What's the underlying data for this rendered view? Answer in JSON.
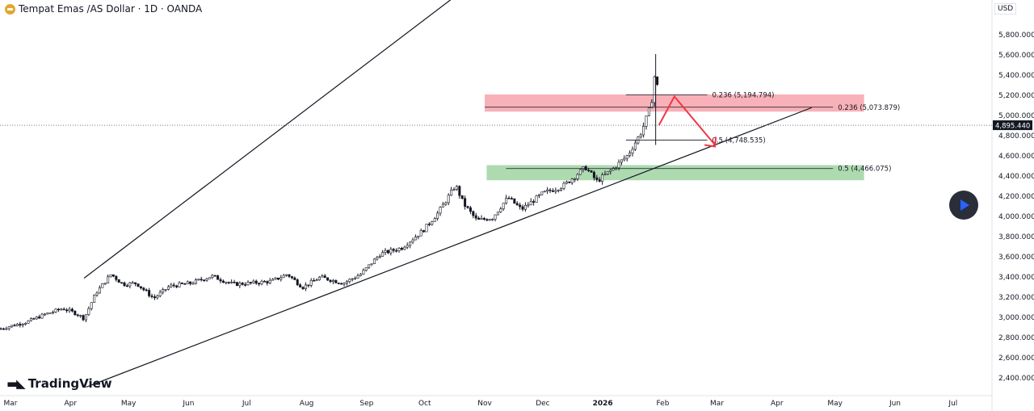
{
  "header": {
    "title": "Tempat Emas /AS Dollar · 1D · OANDA",
    "currency": "USD"
  },
  "logo": {
    "text": "TradingView"
  },
  "colors": {
    "up": "#089981",
    "down": "#f23645",
    "candle": "#131722",
    "resistance_zone": "#f7a8b0",
    "support_zone": "#a5d6a7",
    "arrow": "#f23645",
    "last_price_bg": "#131722"
  },
  "chart_data": {
    "type": "candlestick",
    "symbol": "XAU/USD",
    "ylim": [
      2300,
      5900
    ],
    "y_ticks": [
      "5,800.000",
      "5,600.000",
      "5,400.000",
      "5,200.000",
      "5,000.000",
      "4,800.000",
      "4,600.000",
      "4,400.000",
      "4,200.000",
      "4,000.000",
      "3,800.000",
      "3,600.000",
      "3,400.000",
      "3,200.000",
      "3,000.000",
      "2,800.000",
      "2,600.000",
      "2,400.000"
    ],
    "y_tick_values": [
      5800,
      5600,
      5400,
      5200,
      5000,
      4800,
      4600,
      4400,
      4200,
      4000,
      3800,
      3600,
      3400,
      3200,
      3000,
      2800,
      2600,
      2400
    ],
    "x_ticks": [
      {
        "label": "Mar",
        "date": "2025-03-01"
      },
      {
        "label": "Apr",
        "date": "2025-04-01"
      },
      {
        "label": "May",
        "date": "2025-05-01"
      },
      {
        "label": "Jun",
        "date": "2025-06-01"
      },
      {
        "label": "Jul",
        "date": "2025-07-01"
      },
      {
        "label": "Aug",
        "date": "2025-08-01"
      },
      {
        "label": "Sep",
        "date": "2025-09-01"
      },
      {
        "label": "Oct",
        "date": "2025-10-01"
      },
      {
        "label": "Nov",
        "date": "2025-11-01"
      },
      {
        "label": "Dec",
        "date": "2025-12-01"
      },
      {
        "label": "2026",
        "date": "2026-01-01"
      },
      {
        "label": "Feb",
        "date": "2026-02-01"
      },
      {
        "label": "Mar",
        "date": "2026-03-01"
      },
      {
        "label": "Apr",
        "date": "2026-04-01"
      },
      {
        "label": "May",
        "date": "2026-05-01"
      },
      {
        "label": "Jun",
        "date": "2026-06-01"
      },
      {
        "label": "Jul",
        "date": "2026-07-01"
      }
    ],
    "closes": [
      [
        "2025-02-24",
        2880
      ],
      [
        "2025-03-10",
        2950
      ],
      [
        "2025-03-18",
        3016
      ],
      [
        "2025-03-28",
        3080
      ],
      [
        "2025-04-04",
        3030
      ],
      [
        "2025-04-08",
        2980
      ],
      [
        "2025-04-14",
        3230
      ],
      [
        "2025-04-22",
        3420
      ],
      [
        "2025-04-28",
        3320
      ],
      [
        "2025-05-05",
        3330
      ],
      [
        "2025-05-14",
        3180
      ],
      [
        "2025-05-22",
        3300
      ],
      [
        "2025-06-02",
        3330
      ],
      [
        "2025-06-13",
        3400
      ],
      [
        "2025-06-24",
        3320
      ],
      [
        "2025-07-03",
        3330
      ],
      [
        "2025-07-14",
        3350
      ],
      [
        "2025-07-22",
        3420
      ],
      [
        "2025-07-30",
        3290
      ],
      [
        "2025-08-08",
        3390
      ],
      [
        "2025-08-20",
        3330
      ],
      [
        "2025-08-29",
        3420
      ],
      [
        "2025-09-08",
        3620
      ],
      [
        "2025-09-19",
        3680
      ],
      [
        "2025-09-30",
        3850
      ],
      [
        "2025-10-08",
        4030
      ],
      [
        "2025-10-17",
        4300
      ],
      [
        "2025-10-21",
        4120
      ],
      [
        "2025-10-28",
        3950
      ],
      [
        "2025-11-05",
        3980
      ],
      [
        "2025-11-13",
        4180
      ],
      [
        "2025-11-20",
        4060
      ],
      [
        "2025-12-01",
        4220
      ],
      [
        "2025-12-12",
        4300
      ],
      [
        "2025-12-23",
        4480
      ],
      [
        "2025-12-29",
        4340
      ],
      [
        "2026-01-06",
        4460
      ],
      [
        "2026-01-14",
        4600
      ],
      [
        "2026-01-21",
        4830
      ],
      [
        "2026-01-26",
        5100
      ],
      [
        "2026-01-28",
        5420
      ],
      [
        "2026-01-29",
        5350
      ],
      [
        "2026-01-30",
        4895.44
      ]
    ],
    "last_price": {
      "value": 4895.44,
      "label": "4,895.440"
    },
    "channel": {
      "upper": [
        [
          "2025-04-08",
          3380
        ],
        [
          "2026-03-29",
          8550
        ]
      ],
      "lower": [
        [
          "2025-04-09",
          2300
        ],
        [
          "2026-04-19",
          5070
        ]
      ]
    },
    "zones": [
      {
        "kind": "resistance",
        "from": "2025-11-01",
        "to": "2026-05-16",
        "low": 5030,
        "high": 5200
      },
      {
        "kind": "support",
        "from": "2025-11-02",
        "to": "2026-05-16",
        "low": 4350,
        "high": 4500
      }
    ],
    "fib_levels": [
      {
        "label": "0.236 (5,194.794)",
        "value": 5194.794,
        "from": "2026-01-13",
        "to": "2026-02-24"
      },
      {
        "label": "0.236 (5,073.879)",
        "value": 5073.879,
        "from": "2025-11-01",
        "to": "2026-04-30"
      },
      {
        "label": "0.5 (4,748.535)",
        "value": 4748.535,
        "from": "2026-01-13",
        "to": "2026-02-24"
      },
      {
        "label": "0.5 (4,466.075)",
        "value": 4466.075,
        "from": "2025-11-12",
        "to": "2026-04-30"
      }
    ],
    "projection_path": [
      [
        "2026-01-30",
        4895
      ],
      [
        "2026-02-07",
        5180
      ],
      [
        "2026-02-28",
        4700
      ]
    ]
  }
}
